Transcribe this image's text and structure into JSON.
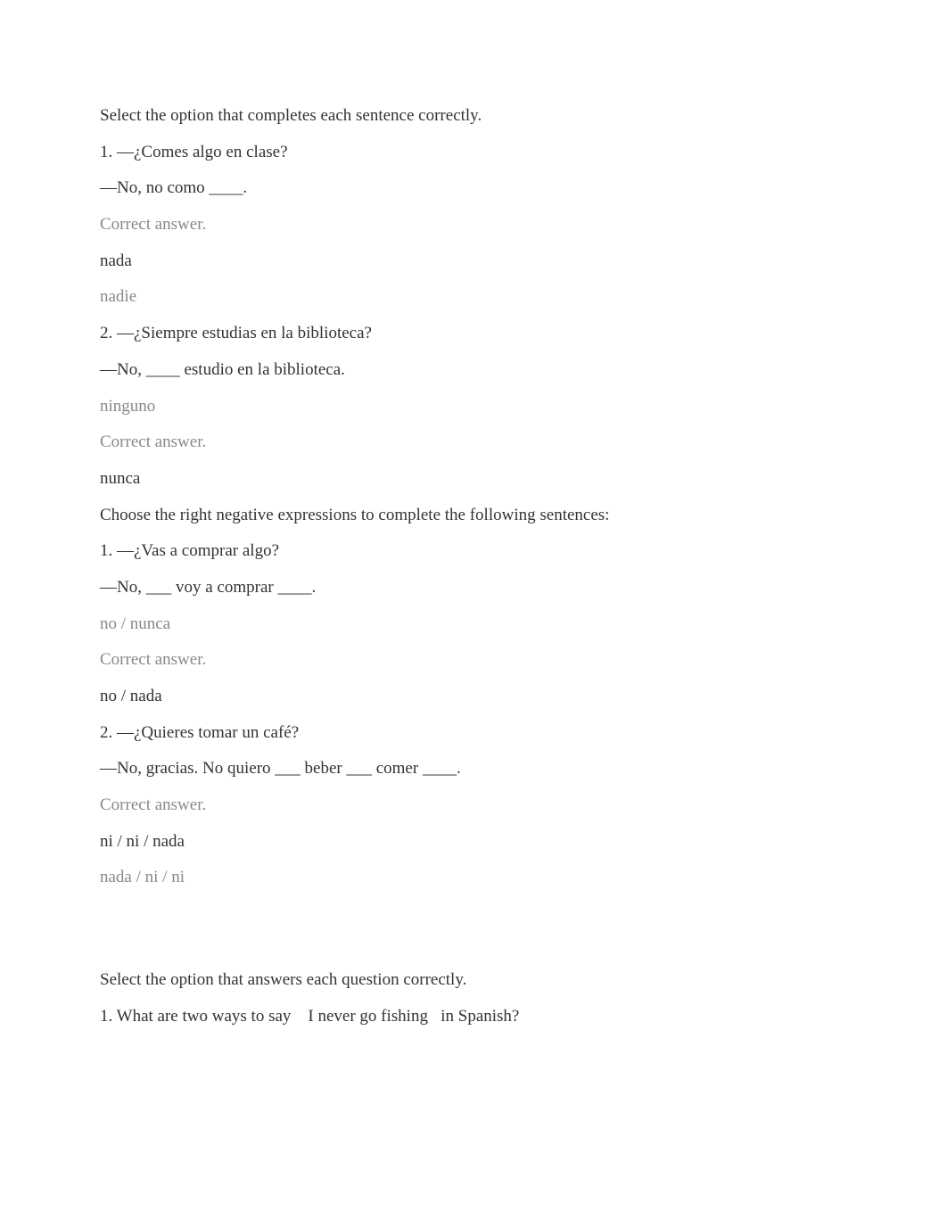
{
  "section1": {
    "instruction": "Select the option that completes each sentence correctly.",
    "q1": {
      "question": "1. —¿Comes algo en clase?",
      "response": "—No, no como ____.",
      "correct_label": "Correct answer.",
      "correct_answer": "nada",
      "incorrect_answer": "nadie"
    },
    "q2": {
      "question": "2. —¿Siempre estudias en la biblioteca?",
      "response": "—No, ____ estudio en la biblioteca.",
      "incorrect_answer": "ninguno",
      "correct_label": "Correct answer.",
      "correct_answer": "nunca"
    }
  },
  "section2": {
    "instruction": "Choose the right negative expressions to complete the following sentences:",
    "q1": {
      "question": "1. —¿Vas a comprar algo?",
      "response": "—No, ___ voy a comprar ____.",
      "incorrect_answer": "no / nunca",
      "correct_label": "Correct answer.",
      "correct_answer": "no / nada"
    },
    "q2": {
      "question": "2. —¿Quieres tomar un café?",
      "response": "—No, gracias. No quiero ___ beber ___ comer ____.",
      "correct_label": "Correct answer.",
      "correct_answer": "ni / ni / nada",
      "incorrect_answer": "nada / ni / ni"
    }
  },
  "section3": {
    "instruction": "Select the option that answers each question correctly.",
    "q1": {
      "prefix": "1. What are two ways to say ",
      "phrase": "I never go fishing",
      "suffix": " in Spanish?"
    }
  },
  "colors": {
    "text_primary": "#333333",
    "text_muted": "#888888",
    "background": "#ffffff"
  },
  "typography": {
    "font_family": "Georgia, 'Times New Roman', serif",
    "font_size": 19
  }
}
